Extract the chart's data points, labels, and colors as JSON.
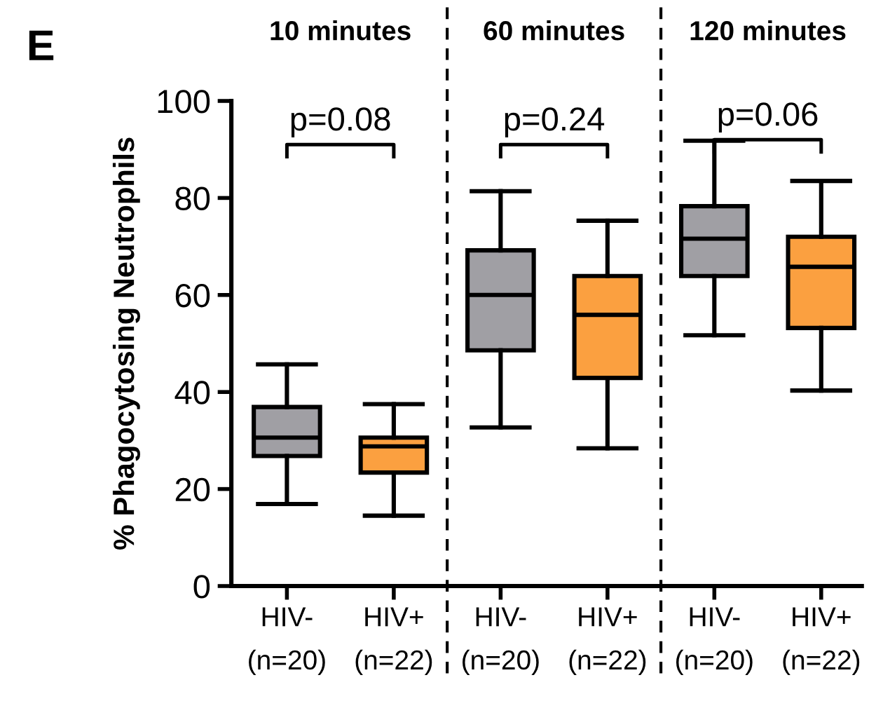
{
  "chart_data": {
    "type": "box",
    "ylabel": "% Phagocytosing Neutrophils",
    "categories": [
      "HIV-\n(n=20)",
      "HIV+\n(n=22)",
      "HIV-\n(n=20)",
      "HIV+\n(n=22)",
      "HIV-\n(n=20)",
      "HIV+\n(n=22)"
    ],
    "colors": [
      "#a09fa4",
      "#fba040",
      "#a09fa4",
      "#fba040",
      "#a09fa4",
      "#fba040"
    ],
    "boxes": [
      {
        "low": 16.9,
        "q1": 26.8,
        "median": 30.6,
        "q3": 36.9,
        "high": 45.7
      },
      {
        "low": 14.5,
        "q1": 23.4,
        "median": 28.8,
        "q3": 30.6,
        "high": 37.5
      },
      {
        "low": 32.7,
        "q1": 48.6,
        "median": 60.0,
        "q3": 69.2,
        "high": 81.4
      },
      {
        "low": 28.4,
        "q1": 42.9,
        "median": 55.9,
        "q3": 63.9,
        "high": 75.3
      },
      {
        "low": 51.7,
        "q1": 63.9,
        "median": 71.6,
        "q3": 78.3,
        "high": 91.8
      },
      {
        "low": 40.3,
        "q1": 53.2,
        "median": 65.8,
        "q3": 72.0,
        "high": 83.5
      }
    ],
    "ylim": [
      0,
      100
    ],
    "yticks": [
      0,
      20,
      40,
      60,
      80,
      100
    ],
    "grid": false,
    "annotations": [
      "E",
      "10 minutes",
      "60 minutes",
      "120 minutes",
      "p=0.08",
      "p=0.24",
      "p=0.06"
    ]
  }
}
